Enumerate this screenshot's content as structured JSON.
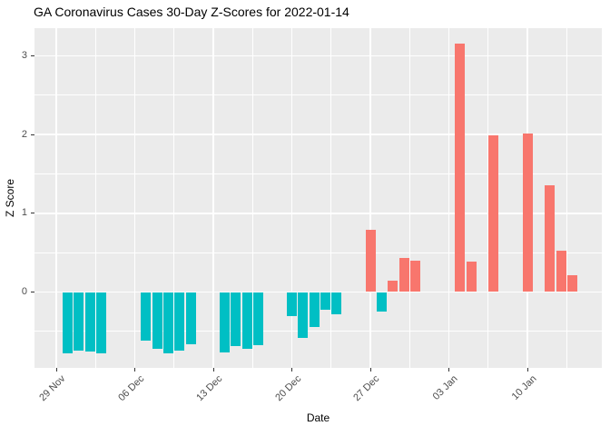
{
  "title": "GA Coronavirus Cases 30-Day Z-Scores for 2022-01-14",
  "chart_data": {
    "type": "bar",
    "title": "GA Coronavirus Cases 30-Day Z-Scores for 2022-01-14",
    "xlabel": "Date",
    "ylabel": "Z Score",
    "x_tick_labels": [
      "29 Nov",
      "06 Dec",
      "13 Dec",
      "20 Dec",
      "27 Dec",
      "03 Jan",
      "10 Jan"
    ],
    "x_tick_dates": [
      "2021-11-29",
      "2021-12-06",
      "2021-12-13",
      "2021-12-20",
      "2021-12-27",
      "2022-01-03",
      "2022-01-10"
    ],
    "y_tick_labels": [
      "0",
      "1",
      "2",
      "3"
    ],
    "y_major_ticks": [
      0,
      1,
      2,
      3
    ],
    "y_minor_ticks": [
      -0.5,
      0.5,
      1.5,
      2.5
    ],
    "ylim": [
      -0.96,
      3.35
    ],
    "grid": true,
    "legend": "none",
    "points": [
      {
        "date": "2021-11-30",
        "z": -0.78
      },
      {
        "date": "2021-12-01",
        "z": -0.74
      },
      {
        "date": "2021-12-02",
        "z": -0.75
      },
      {
        "date": "2021-12-03",
        "z": -0.78
      },
      {
        "date": "2021-12-07",
        "z": -0.62
      },
      {
        "date": "2021-12-08",
        "z": -0.72
      },
      {
        "date": "2021-12-09",
        "z": -0.78
      },
      {
        "date": "2021-12-10",
        "z": -0.74
      },
      {
        "date": "2021-12-11",
        "z": -0.66
      },
      {
        "date": "2021-12-14",
        "z": -0.77
      },
      {
        "date": "2021-12-15",
        "z": -0.69
      },
      {
        "date": "2021-12-16",
        "z": -0.72
      },
      {
        "date": "2021-12-17",
        "z": -0.68
      },
      {
        "date": "2021-12-20",
        "z": -0.3
      },
      {
        "date": "2021-12-21",
        "z": -0.58
      },
      {
        "date": "2021-12-22",
        "z": -0.44
      },
      {
        "date": "2021-12-23",
        "z": -0.23
      },
      {
        "date": "2021-12-24",
        "z": -0.28
      },
      {
        "date": "2021-12-27",
        "z": 0.79
      },
      {
        "date": "2021-12-28",
        "z": -0.25
      },
      {
        "date": "2021-12-29",
        "z": 0.14
      },
      {
        "date": "2021-12-30",
        "z": 0.43
      },
      {
        "date": "2021-12-31",
        "z": 0.4
      },
      {
        "date": "2022-01-04",
        "z": 3.16
      },
      {
        "date": "2022-01-05",
        "z": 0.39
      },
      {
        "date": "2022-01-07",
        "z": 1.99
      },
      {
        "date": "2022-01-10",
        "z": 2.01
      },
      {
        "date": "2022-01-12",
        "z": 1.36
      },
      {
        "date": "2022-01-13",
        "z": 0.52
      },
      {
        "date": "2022-01-14",
        "z": 0.21
      }
    ],
    "colors": {
      "positive_bar": "#F8766D",
      "negative_bar": "#00BFC4",
      "panel_background": "#EBEBEB",
      "gridline": "#FFFFFF",
      "axis_text": "#4D4D4D",
      "title_text": "#000000"
    }
  }
}
